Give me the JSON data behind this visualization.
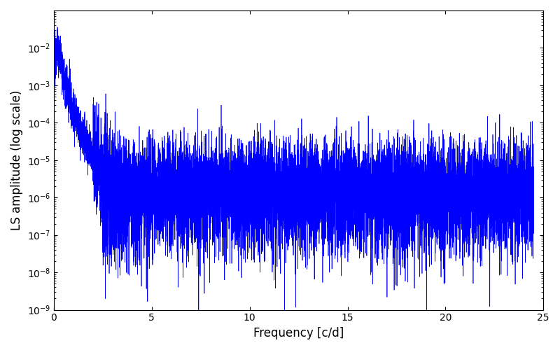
{
  "title": "",
  "xlabel": "Frequency [c/d]",
  "ylabel": "LS amplitude (log scale)",
  "line_color": "#0000ff",
  "line_width": 0.5,
  "xlim": [
    0,
    25
  ],
  "ylim": [
    1e-09,
    0.1
  ],
  "yscale": "log",
  "freq_max": 24.5,
  "n_points": 12000,
  "peak_amp": 0.028,
  "peak_freq": 0.3,
  "seed": 12345,
  "background_color": "#ffffff",
  "figsize": [
    8.0,
    5.0
  ],
  "dpi": 100,
  "yticks": [
    1e-09,
    1e-08,
    1e-07,
    1e-06,
    1e-05,
    0.0001,
    0.001,
    0.01
  ],
  "xticks": [
    0,
    5,
    10,
    15,
    20,
    25
  ]
}
